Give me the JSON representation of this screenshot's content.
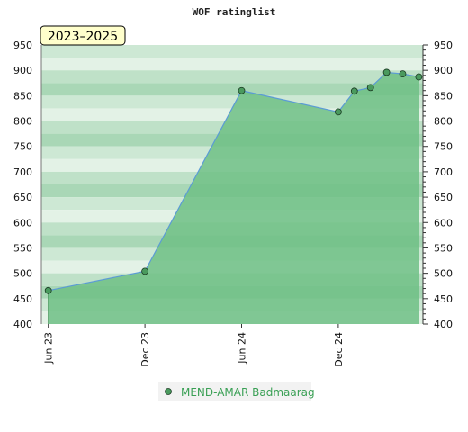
{
  "chart_data": {
    "type": "area",
    "title": "WOF ratinglist",
    "period": "2023–2025",
    "xlabel": "",
    "ylabel": "",
    "ylim": [
      400,
      950
    ],
    "yticks": [
      400,
      450,
      500,
      550,
      600,
      650,
      700,
      750,
      800,
      850,
      900,
      950
    ],
    "xticks": [
      {
        "label": "Jun 23",
        "date": "2023-06"
      },
      {
        "label": "Dec 23",
        "date": "2023-12"
      },
      {
        "label": "Jun 24",
        "date": "2024-06"
      },
      {
        "label": "Dec 24",
        "date": "2024-12"
      }
    ],
    "series": [
      {
        "name": "MEND-AMAR Badmaarag",
        "points": [
          {
            "date": "2023-06",
            "rating": 466
          },
          {
            "date": "2023-12",
            "rating": 504
          },
          {
            "date": "2024-06",
            "rating": 860
          },
          {
            "date": "2024-12",
            "rating": 818
          },
          {
            "date": "2025-01",
            "rating": 859
          },
          {
            "date": "2025-02",
            "rating": 866
          },
          {
            "date": "2025-03",
            "rating": 896
          },
          {
            "date": "2025-04",
            "rating": 893
          },
          {
            "date": "2025-05",
            "rating": 887
          }
        ]
      }
    ],
    "grid": "horizontal-bands",
    "legend_position": "bottom-center",
    "colors": {
      "fill": "#6fbf85",
      "line": "#5b9bd5",
      "marker": "#4a9a5e",
      "legend_text": "#3aa055",
      "badge_bg": "#ffffcc",
      "band_light": "#e3f2e6",
      "band_mid": "#bfe1c8"
    }
  }
}
